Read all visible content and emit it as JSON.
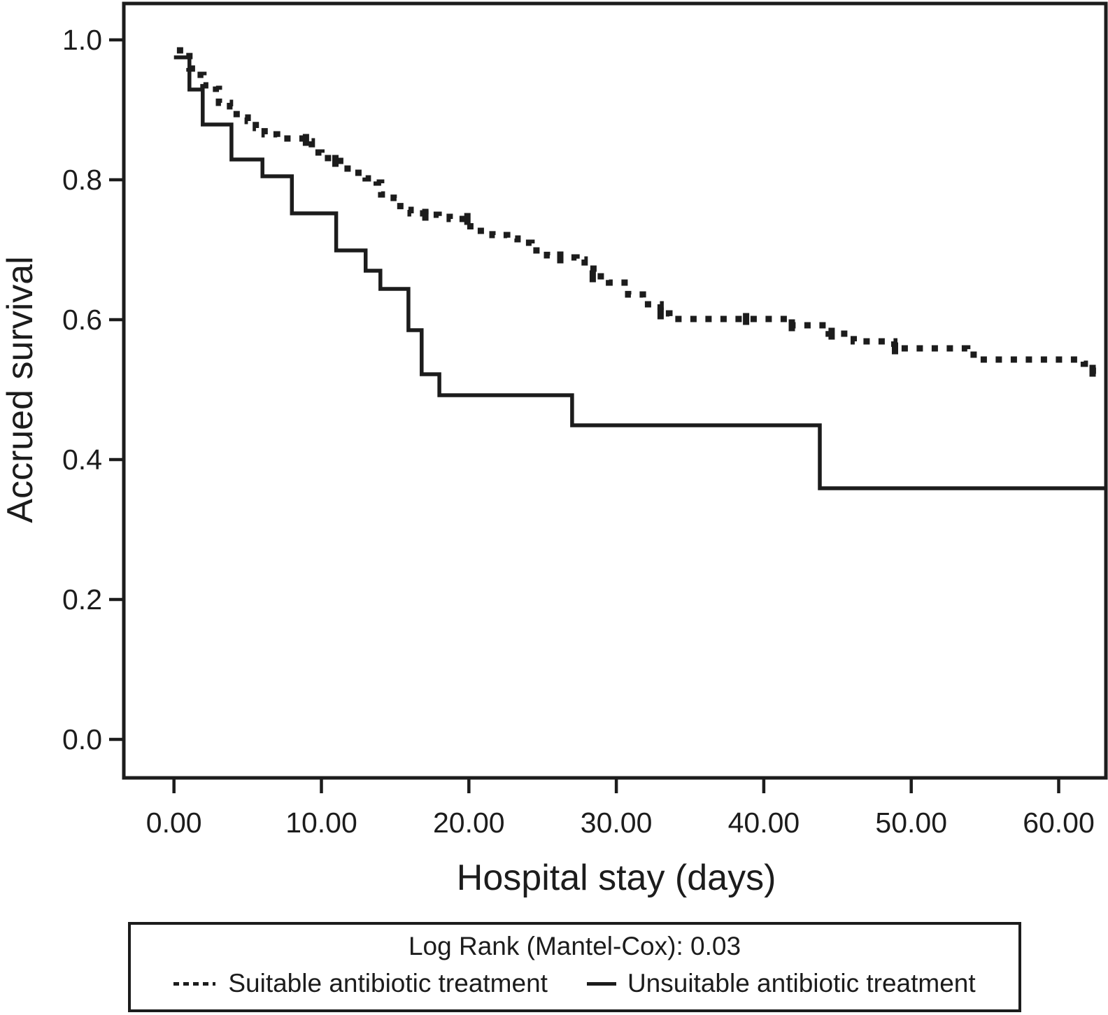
{
  "chart_data": {
    "type": "line",
    "subtype": "kaplan-meier-step",
    "title": "",
    "xlabel": "Hospital stay (days)",
    "ylabel": "Accrued survival",
    "xlim": [
      -3.4,
      63.2
    ],
    "ylim": [
      -0.055,
      1.052
    ],
    "x_tick_values": [
      0,
      10,
      20,
      30,
      40,
      50,
      60
    ],
    "x_tick_labels": [
      "0.00",
      "10.00",
      "20.00",
      "30.00",
      "40.00",
      "50.00",
      "60.00"
    ],
    "y_tick_values": [
      0.0,
      0.2,
      0.4,
      0.6,
      0.8,
      1.0
    ],
    "y_tick_labels": [
      "0.0",
      "0.2",
      "0.4",
      "0.6",
      "0.8",
      "1.0"
    ],
    "grid": false,
    "legend_position": "bottom-box",
    "line_color": "#1c1c1c",
    "series": [
      {
        "name": "Suitable antibiotic treatment",
        "style": "dashed",
        "step": "after",
        "end_x": 62.8,
        "points": [
          [
            0.2,
            0.985
          ],
          [
            1.05,
            0.959
          ],
          [
            1.6,
            0.95
          ],
          [
            2.0,
            0.935
          ],
          [
            2.85,
            0.93
          ],
          [
            3.05,
            0.91
          ],
          [
            3.8,
            0.905
          ],
          [
            4.25,
            0.889
          ],
          [
            5.0,
            0.884
          ],
          [
            5.55,
            0.874
          ],
          [
            6.15,
            0.865
          ],
          [
            7.0,
            0.859
          ],
          [
            9.0,
            0.855
          ],
          [
            9.35,
            0.839
          ],
          [
            10.0,
            0.831
          ],
          [
            10.95,
            0.827
          ],
          [
            11.55,
            0.816
          ],
          [
            12.15,
            0.81
          ],
          [
            13.0,
            0.802
          ],
          [
            13.75,
            0.796
          ],
          [
            14.05,
            0.779
          ],
          [
            14.9,
            0.774
          ],
          [
            15.35,
            0.757
          ],
          [
            16.05,
            0.752
          ],
          [
            17.05,
            0.75
          ],
          [
            17.95,
            0.747
          ],
          [
            18.7,
            0.744
          ],
          [
            20.1,
            0.727
          ],
          [
            21.6,
            0.721
          ],
          [
            22.6,
            0.716
          ],
          [
            23.3,
            0.71
          ],
          [
            24.25,
            0.699
          ],
          [
            25.3,
            0.692
          ],
          [
            26.2,
            0.689
          ],
          [
            27.3,
            0.686
          ],
          [
            27.85,
            0.673
          ],
          [
            28.45,
            0.662
          ],
          [
            29.5,
            0.653
          ],
          [
            30.8,
            0.636
          ],
          [
            31.8,
            0.622
          ],
          [
            33.0,
            0.609
          ],
          [
            33.6,
            0.601
          ],
          [
            41.9,
            0.592
          ],
          [
            44.4,
            0.58
          ],
          [
            46.1,
            0.569
          ],
          [
            48.85,
            0.559
          ],
          [
            53.8,
            0.55
          ],
          [
            54.6,
            0.543
          ],
          [
            61.7,
            0.537
          ],
          [
            62.3,
            0.527
          ]
        ],
        "censor_marks": [
          [
            8.95,
            0.857
          ],
          [
            10.95,
            0.827
          ],
          [
            17.05,
            0.75
          ],
          [
            19.9,
            0.744
          ],
          [
            26.2,
            0.689
          ],
          [
            28.4,
            0.662
          ],
          [
            33.0,
            0.609
          ],
          [
            38.8,
            0.601
          ],
          [
            41.9,
            0.592
          ],
          [
            44.6,
            0.58
          ],
          [
            48.9,
            0.559
          ],
          [
            62.3,
            0.527
          ]
        ]
      },
      {
        "name": "Unsuitable antibiotic treatment",
        "style": "solid",
        "step": "after",
        "end_x": 63.2,
        "points": [
          [
            0.0,
            0.975
          ],
          [
            1.05,
            0.929
          ],
          [
            1.95,
            0.879
          ],
          [
            3.9,
            0.829
          ],
          [
            6.0,
            0.805
          ],
          [
            8.0,
            0.752
          ],
          [
            11.0,
            0.699
          ],
          [
            13.0,
            0.67
          ],
          [
            14.0,
            0.644
          ],
          [
            15.9,
            0.585
          ],
          [
            16.8,
            0.522
          ],
          [
            18.0,
            0.492
          ],
          [
            27.0,
            0.449
          ],
          [
            43.8,
            0.359
          ]
        ],
        "censor_marks": []
      }
    ],
    "legend": {
      "stat_label": "Log Rank (Mantel-Cox): 0.03",
      "entries": [
        {
          "label": "Suitable antibiotic treatment",
          "style": "dashed"
        },
        {
          "label": "Unsuitable antibiotic treatment",
          "style": "solid"
        }
      ]
    }
  }
}
